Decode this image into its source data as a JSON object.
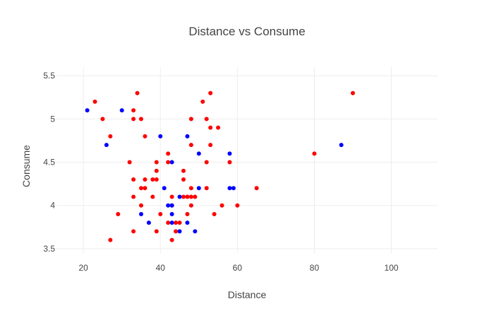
{
  "chart_data": {
    "type": "scatter",
    "title": "Distance vs Consume",
    "xlabel": "Distance",
    "ylabel": "Consume",
    "xlim": [
      13,
      112
    ],
    "ylim": [
      3.45,
      5.6
    ],
    "x_ticks": [
      20,
      40,
      60,
      80,
      100
    ],
    "y_ticks": [
      3.5,
      4,
      4.5,
      5,
      5.5
    ],
    "x_tick_labels": [
      "20",
      "40",
      "60",
      "80",
      "100"
    ],
    "y_tick_labels": [
      "3.5",
      "4",
      "4.5",
      "5",
      "5.5"
    ],
    "grid": true,
    "legend": false,
    "series": [
      {
        "color": "#ff0000",
        "points": [
          [
            23,
            5.2
          ],
          [
            25,
            5.0
          ],
          [
            27,
            4.8
          ],
          [
            27,
            3.6
          ],
          [
            29,
            3.9
          ],
          [
            32,
            4.5
          ],
          [
            33,
            5.1
          ],
          [
            33,
            5.0
          ],
          [
            33,
            4.3
          ],
          [
            33,
            4.1
          ],
          [
            33,
            3.7
          ],
          [
            34,
            5.3
          ],
          [
            35,
            5.0
          ],
          [
            35,
            4.2
          ],
          [
            35,
            4.0
          ],
          [
            36,
            4.8
          ],
          [
            36,
            4.3
          ],
          [
            36,
            4.2
          ],
          [
            38,
            4.3
          ],
          [
            38,
            4.1
          ],
          [
            39,
            4.5
          ],
          [
            39,
            4.4
          ],
          [
            39,
            4.3
          ],
          [
            39,
            3.7
          ],
          [
            40,
            3.9
          ],
          [
            42,
            4.6
          ],
          [
            42,
            4.5
          ],
          [
            42,
            3.8
          ],
          [
            43,
            4.1
          ],
          [
            43,
            4.0
          ],
          [
            43,
            3.6
          ],
          [
            44,
            3.8
          ],
          [
            44,
            3.7
          ],
          [
            45,
            3.8
          ],
          [
            46,
            4.4
          ],
          [
            46,
            4.3
          ],
          [
            46,
            4.1
          ],
          [
            47,
            4.1
          ],
          [
            47,
            3.9
          ],
          [
            48,
            5.0
          ],
          [
            48,
            4.7
          ],
          [
            48,
            4.2
          ],
          [
            48,
            4.1
          ],
          [
            48,
            4.0
          ],
          [
            49,
            4.1
          ],
          [
            51,
            5.2
          ],
          [
            52,
            5.0
          ],
          [
            52,
            4.5
          ],
          [
            52,
            4.2
          ],
          [
            53,
            5.3
          ],
          [
            53,
            4.9
          ],
          [
            53,
            4.7
          ],
          [
            54,
            3.9
          ],
          [
            55,
            4.9
          ],
          [
            56,
            4.0
          ],
          [
            58,
            4.5
          ],
          [
            60,
            4.0
          ],
          [
            65,
            4.2
          ],
          [
            80,
            4.6
          ],
          [
            90,
            5.3
          ]
        ]
      },
      {
        "color": "#0000ff",
        "points": [
          [
            21,
            5.1
          ],
          [
            26,
            4.7
          ],
          [
            30,
            5.1
          ],
          [
            35,
            3.9
          ],
          [
            37,
            3.8
          ],
          [
            40,
            4.8
          ],
          [
            41,
            4.2
          ],
          [
            42,
            4.0
          ],
          [
            43,
            4.5
          ],
          [
            43,
            4.0
          ],
          [
            43,
            3.9
          ],
          [
            43,
            3.8
          ],
          [
            45,
            4.1
          ],
          [
            45,
            3.7
          ],
          [
            47,
            4.8
          ],
          [
            47,
            3.8
          ],
          [
            49,
            3.7
          ],
          [
            50,
            4.6
          ],
          [
            50,
            4.2
          ],
          [
            58,
            4.6
          ],
          [
            58,
            4.2
          ],
          [
            59,
            4.2
          ],
          [
            87,
            4.7
          ]
        ]
      }
    ]
  }
}
